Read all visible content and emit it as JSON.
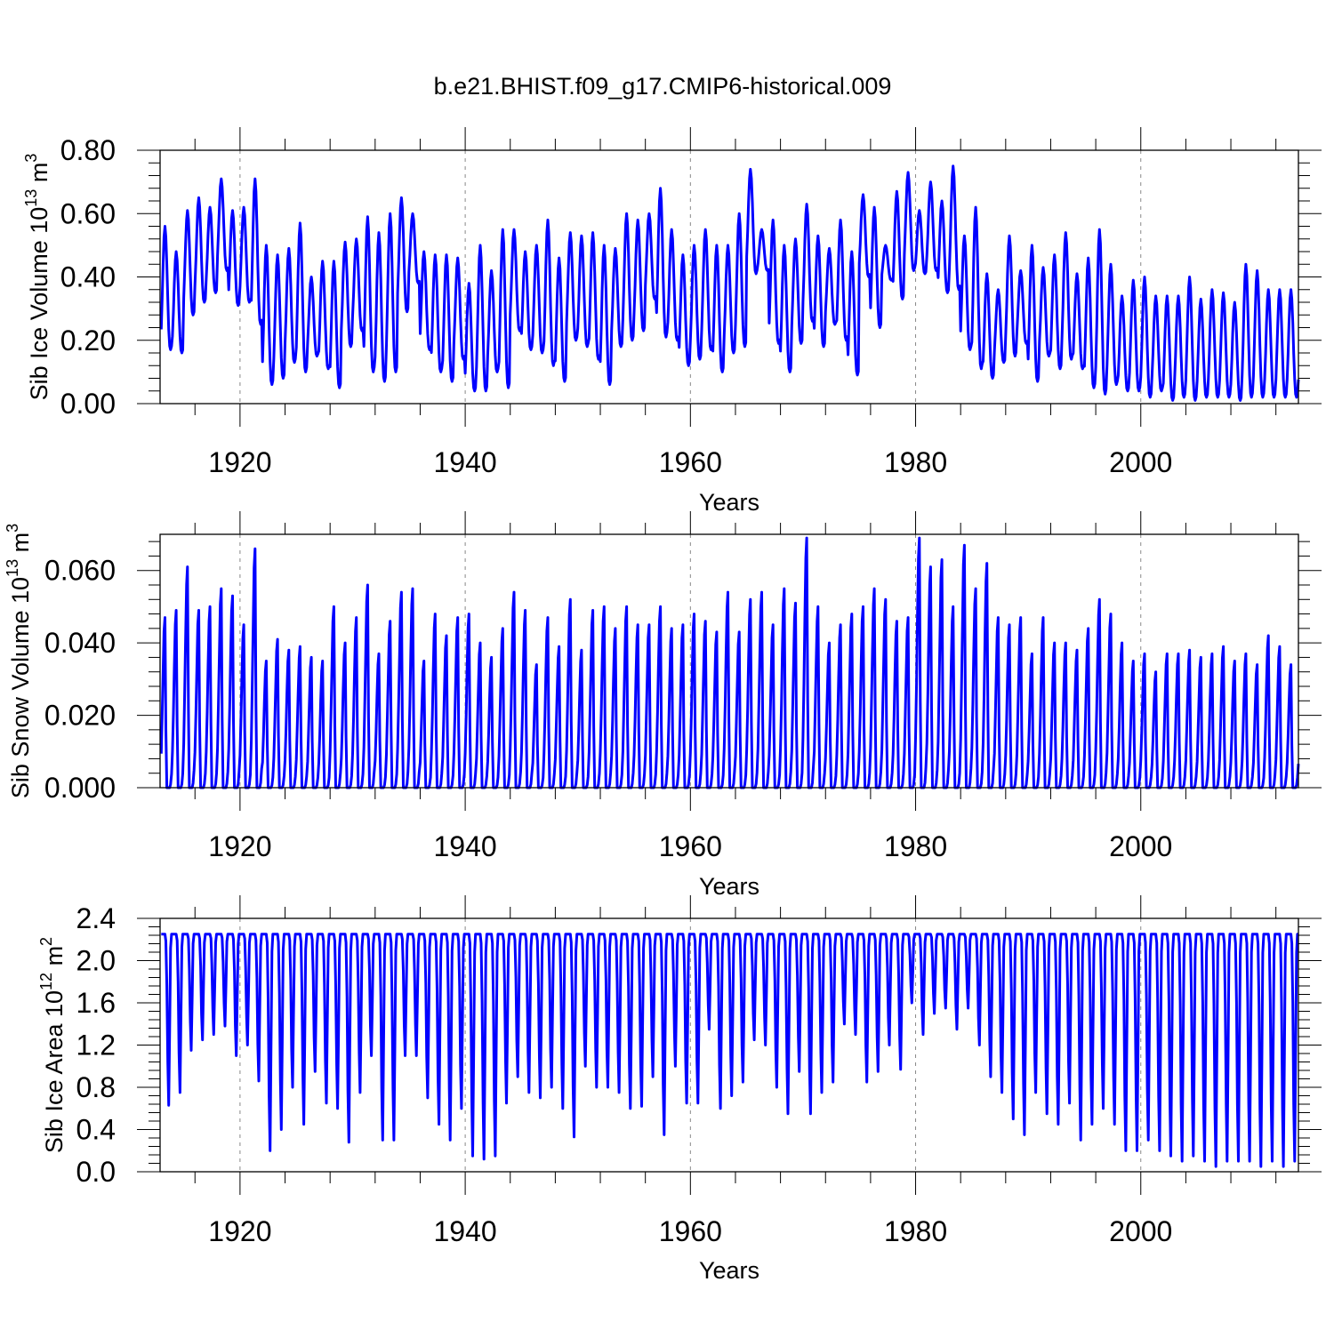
{
  "chart_data": {
    "type": "line",
    "title": "b.e21.BHIST.f09_g17.CMIP6-historical.009",
    "line_color": "#0000ff",
    "x_range": [
      1912.9,
      2014.0
    ],
    "x_ticks": [
      1920,
      1940,
      1960,
      1980,
      2000
    ],
    "x_tick_labels": [
      "1920",
      "1940",
      "1960",
      "1980",
      "2000"
    ],
    "panels": [
      {
        "id": "ice-volume",
        "ylabel": "Sib Ice Volume 10",
        "ylabel_exp": "13",
        "ylabel_unit": " m",
        "ylabel_unit_exp": "3",
        "xlabel": "Years",
        "ylim": [
          0,
          0.8
        ],
        "y_ticks": [
          0,
          0.2,
          0.4,
          0.6,
          0.8
        ],
        "y_tick_labels": [
          "0.00",
          "0.20",
          "0.40",
          "0.60",
          "0.80"
        ],
        "seasonal": "mid-peak",
        "annual_max": [
          0.56,
          0.48,
          0.61,
          0.65,
          0.62,
          0.71,
          0.61,
          0.62,
          0.71,
          0.5,
          0.47,
          0.49,
          0.57,
          0.4,
          0.45,
          0.45,
          0.51,
          0.52,
          0.59,
          0.54,
          0.6,
          0.65,
          0.6,
          0.48,
          0.47,
          0.47,
          0.46,
          0.38,
          0.5,
          0.42,
          0.55,
          0.55,
          0.48,
          0.5,
          0.58,
          0.46,
          0.54,
          0.53,
          0.54,
          0.5,
          0.49,
          0.6,
          0.58,
          0.6,
          0.68,
          0.55,
          0.47,
          0.5,
          0.55,
          0.5,
          0.5,
          0.6,
          0.74,
          0.55,
          0.58,
          0.5,
          0.52,
          0.63,
          0.53,
          0.49,
          0.58,
          0.48,
          0.66,
          0.62,
          0.5,
          0.67,
          0.73,
          0.61,
          0.7,
          0.64,
          0.75,
          0.53,
          0.62,
          0.41,
          0.36,
          0.53,
          0.42,
          0.5,
          0.43,
          0.47,
          0.54,
          0.41,
          0.46,
          0.55,
          0.44,
          0.34,
          0.39,
          0.4,
          0.34,
          0.34,
          0.34,
          0.4,
          0.33,
          0.36,
          0.35,
          0.32,
          0.44,
          0.42,
          0.36,
          0.36
        ],
        "annual_min": [
          0.17,
          0.16,
          0.28,
          0.32,
          0.35,
          0.42,
          0.31,
          0.32,
          0.25,
          0.06,
          0.08,
          0.13,
          0.1,
          0.15,
          0.11,
          0.05,
          0.18,
          0.23,
          0.1,
          0.07,
          0.1,
          0.29,
          0.38,
          0.17,
          0.1,
          0.07,
          0.14,
          0.04,
          0.04,
          0.1,
          0.05,
          0.23,
          0.17,
          0.16,
          0.12,
          0.07,
          0.2,
          0.18,
          0.14,
          0.06,
          0.18,
          0.2,
          0.23,
          0.33,
          0.21,
          0.2,
          0.12,
          0.14,
          0.17,
          0.1,
          0.16,
          0.18,
          0.41,
          0.42,
          0.19,
          0.1,
          0.19,
          0.26,
          0.18,
          0.25,
          0.2,
          0.09,
          0.4,
          0.24,
          0.39,
          0.33,
          0.42,
          0.41,
          0.42,
          0.35,
          0.36,
          0.17,
          0.11,
          0.08,
          0.13,
          0.15,
          0.19,
          0.07,
          0.15,
          0.11,
          0.14,
          0.11,
          0.05,
          0.03,
          0.06,
          0.04,
          0.04,
          0.02,
          0.04,
          0.01,
          0.02,
          0.01,
          0.02,
          0.02,
          0.02,
          0.01,
          0.02,
          0.02,
          0.02,
          0.02
        ]
      },
      {
        "id": "snow-volume",
        "ylabel": "Sib Snow Volume 10",
        "ylabel_exp": "13",
        "ylabel_unit": " m",
        "ylabel_unit_exp": "3",
        "xlabel": "Years",
        "ylim": [
          0,
          0.07
        ],
        "y_ticks": [
          0,
          0.02,
          0.04,
          0.06
        ],
        "y_tick_labels": [
          "0.000",
          "0.020",
          "0.040",
          "0.060"
        ],
        "seasonal": "spring-peak",
        "annual_max": [
          0.047,
          0.049,
          0.061,
          0.049,
          0.05,
          0.055,
          0.053,
          0.045,
          0.066,
          0.035,
          0.041,
          0.038,
          0.039,
          0.036,
          0.035,
          0.05,
          0.04,
          0.047,
          0.056,
          0.037,
          0.046,
          0.054,
          0.055,
          0.035,
          0.048,
          0.042,
          0.047,
          0.048,
          0.04,
          0.036,
          0.044,
          0.054,
          0.049,
          0.034,
          0.047,
          0.039,
          0.052,
          0.038,
          0.049,
          0.05,
          0.044,
          0.05,
          0.045,
          0.045,
          0.05,
          0.044,
          0.045,
          0.048,
          0.046,
          0.043,
          0.054,
          0.043,
          0.052,
          0.054,
          0.045,
          0.055,
          0.051,
          0.069,
          0.05,
          0.04,
          0.045,
          0.048,
          0.05,
          0.055,
          0.052,
          0.046,
          0.047,
          0.069,
          0.061,
          0.063,
          0.05,
          0.067,
          0.055,
          0.062,
          0.047,
          0.045,
          0.047,
          0.037,
          0.047,
          0.04,
          0.04,
          0.038,
          0.044,
          0.052,
          0.048,
          0.04,
          0.035,
          0.037,
          0.032,
          0.037,
          0.037,
          0.038,
          0.036,
          0.037,
          0.039,
          0.035,
          0.037,
          0.034,
          0.042,
          0.039,
          0.034,
          0.033
        ],
        "annual_min": [
          0.0
        ]
      },
      {
        "id": "ice-area",
        "ylabel": "Sib Ice Area 10",
        "ylabel_exp": "12",
        "ylabel_unit": " m",
        "ylabel_unit_exp": "2",
        "xlabel": "Years",
        "ylim": [
          0,
          2.4
        ],
        "y_ticks": [
          0,
          0.4,
          0.8,
          1.2,
          1.6,
          2.0,
          2.4
        ],
        "y_tick_labels": [
          "0.0",
          "0.4",
          "0.8",
          "1.2",
          "1.6",
          "2.0",
          "2.4"
        ],
        "seasonal": "summer-min",
        "annual_max": [
          2.25
        ],
        "annual_min": [
          0.63,
          0.75,
          1.15,
          1.25,
          1.3,
          1.38,
          1.1,
          1.2,
          0.86,
          0.2,
          0.4,
          0.8,
          0.45,
          0.95,
          0.65,
          0.6,
          0.28,
          0.75,
          1.1,
          0.3,
          0.3,
          1.1,
          1.1,
          0.7,
          0.45,
          0.3,
          0.6,
          0.15,
          0.12,
          0.15,
          0.65,
          0.9,
          0.75,
          0.7,
          0.8,
          0.6,
          0.33,
          1.0,
          0.8,
          0.8,
          0.75,
          0.6,
          0.62,
          0.9,
          0.35,
          1.0,
          0.65,
          0.65,
          1.35,
          0.6,
          0.72,
          0.85,
          1.25,
          1.2,
          0.8,
          0.55,
          0.95,
          0.55,
          0.75,
          0.85,
          1.4,
          1.3,
          0.85,
          0.95,
          1.2,
          0.97,
          1.6,
          1.3,
          1.5,
          1.55,
          1.35,
          1.55,
          1.2,
          0.9,
          0.75,
          0.5,
          0.35,
          0.75,
          0.55,
          0.45,
          0.65,
          0.3,
          0.45,
          0.6,
          0.45,
          0.2,
          0.2,
          0.3,
          0.2,
          0.15,
          0.1,
          0.15,
          0.1,
          0.05,
          0.1,
          0.1,
          0.1,
          0.05,
          0.1,
          0.05,
          0.1,
          0.05,
          0.05
        ]
      }
    ]
  }
}
